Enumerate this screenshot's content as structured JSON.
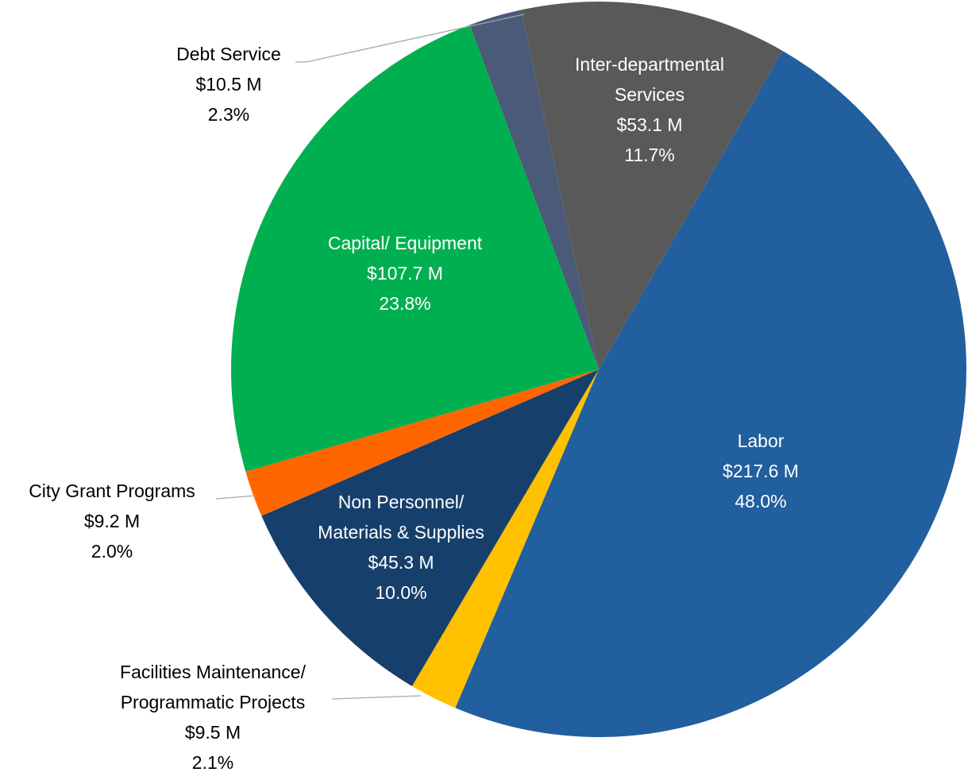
{
  "chart_data": {
    "type": "pie",
    "categories": [
      [
        "Labor"
      ],
      [
        "Facilities Maintenance/",
        "Programmatic Projects"
      ],
      [
        "Non Personnel/",
        "Materials & Supplies"
      ],
      [
        "City Grant Programs"
      ],
      [
        "Capital/ Equipment"
      ],
      [
        "Debt Service"
      ],
      [
        "Inter-departmental",
        "Services"
      ]
    ],
    "values": [
      217.6,
      9.5,
      45.3,
      9.2,
      107.7,
      10.5,
      53.1
    ],
    "value_labels": [
      "$217.6 M",
      "$9.5 M",
      "$45.3 M",
      "$9.2 M",
      "$107.7 M",
      "$10.5 M",
      "$53.1 M"
    ],
    "percents": [
      48.0,
      2.1,
      10.0,
      2.0,
      23.8,
      2.3,
      11.7
    ],
    "percent_labels": [
      "48.0%",
      "2.1%",
      "10.0%",
      "2.0%",
      "23.8%",
      "2.3%",
      "11.7%"
    ],
    "colors": [
      "#215f9e",
      "#ffc000",
      "#173f6b",
      "#ff6600",
      "#00b050",
      "#4b5a78",
      "#595959"
    ]
  }
}
